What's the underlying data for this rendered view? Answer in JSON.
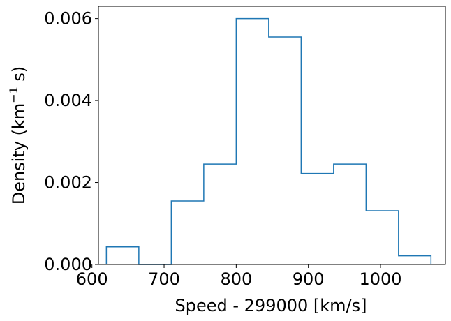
{
  "chart_data": {
    "type": "histogram",
    "histtype": "step",
    "series_color": "#1f77b4",
    "xlabel": "Speed - 299000 [km/s]",
    "ylabel": {
      "main": "Density (km",
      "superscript": "−1",
      "suffix": " s)"
    },
    "xlim": [
      609,
      1090
    ],
    "ylim": [
      0,
      0.0063
    ],
    "x_ticks": [
      {
        "value": 600,
        "label": "600"
      },
      {
        "value": 700,
        "label": "700"
      },
      {
        "value": 800,
        "label": "800"
      },
      {
        "value": 900,
        "label": "900"
      },
      {
        "value": 1000,
        "label": "1000"
      }
    ],
    "y_ticks": [
      {
        "value": 0.0,
        "label": "0.000"
      },
      {
        "value": 0.002,
        "label": "0.002"
      },
      {
        "value": 0.004,
        "label": "0.004"
      },
      {
        "value": 0.006,
        "label": "0.006"
      }
    ],
    "bin_edges": [
      620,
      665,
      710,
      755,
      800,
      845,
      890,
      935,
      980,
      1025,
      1070
    ],
    "densities": [
      0.00043,
      0.0,
      0.00155,
      0.00245,
      0.006,
      0.00555,
      0.00222,
      0.00245,
      0.00131,
      0.00021
    ],
    "grid": false,
    "legend": "none"
  }
}
